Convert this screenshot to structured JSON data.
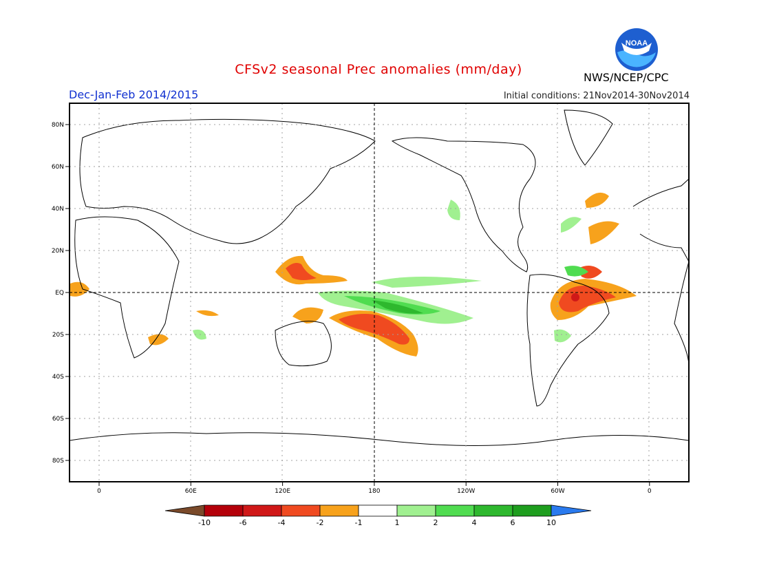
{
  "header": {
    "title": "CFSv2 seasonal Prec anomalies (mm/day)",
    "period": "Dec-Jan-Feb 2014/2015",
    "initial_conditions": "Initial conditions: 21Nov2014-30Nov2014",
    "agency": "NWS/NCEP/CPC",
    "logo_text": "NOAA"
  },
  "map": {
    "lat_ticks": [
      "80N",
      "60N",
      "40N",
      "20N",
      "EQ",
      "20S",
      "40S",
      "60S",
      "80S"
    ],
    "lon_ticks": [
      "0",
      "60E",
      "120E",
      "180",
      "120W",
      "60W",
      "0"
    ]
  },
  "legend": {
    "labels": [
      "-10",
      "-6",
      "-4",
      "-2",
      "-1",
      "1",
      "2",
      "4",
      "6",
      "10"
    ],
    "colors": [
      "#7a4a2a",
      "#b4000a",
      "#d01818",
      "#f04a20",
      "#f7a21c",
      "#ffffff",
      "#a0f090",
      "#50dc50",
      "#2eb82e",
      "#1e9e1e",
      "#2a7aee"
    ]
  },
  "colors": {
    "title": "#e00000",
    "period": "#1030d0"
  }
}
